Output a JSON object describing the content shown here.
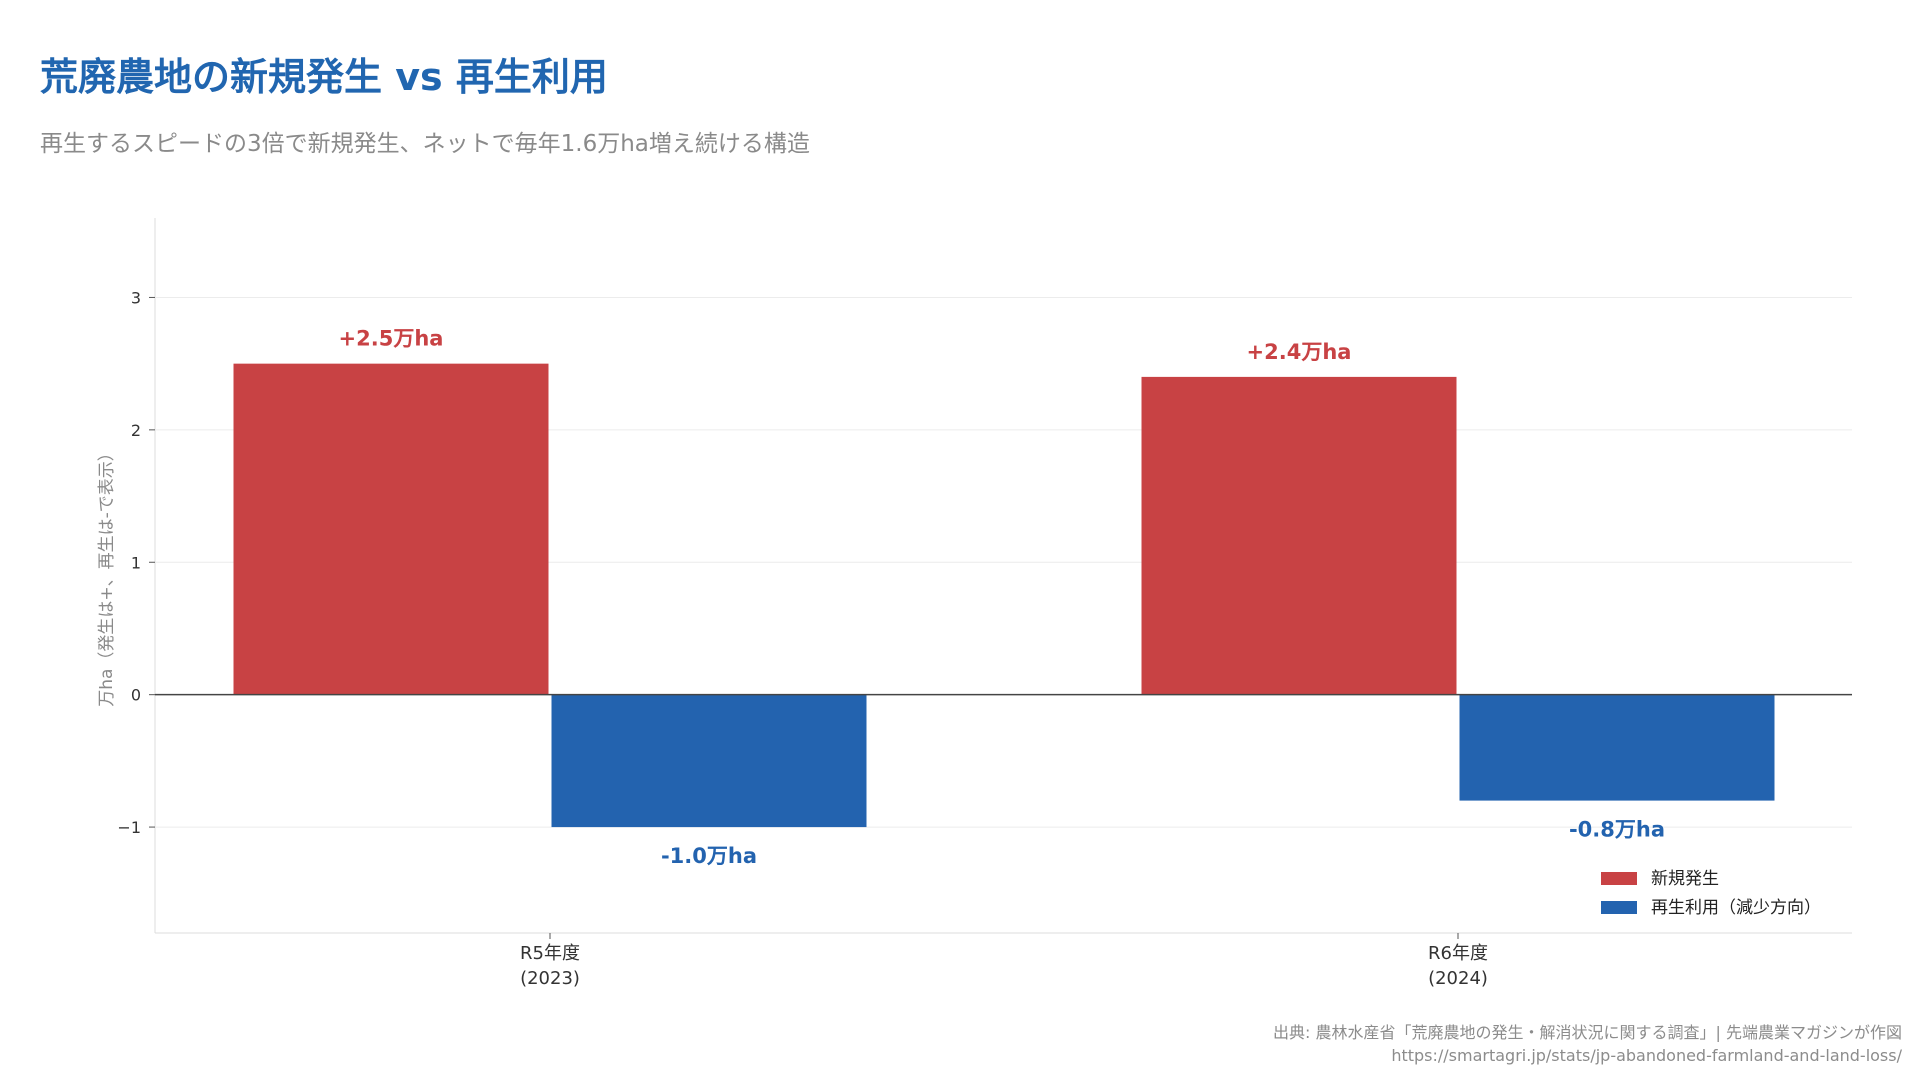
{
  "header": {
    "title": "荒廃農地の新規発生 vs 再生利用",
    "subtitle": "再生するスピードの3倍で新規発生、ネットで毎年1.6万ha増え続ける構造"
  },
  "chart_data": {
    "type": "bar",
    "categories": [
      "R5年度",
      "R6年度"
    ],
    "category_sublabels": [
      "(2023)",
      "(2024)"
    ],
    "series": [
      {
        "name": "新規発生",
        "values": [
          2.5,
          2.4
        ],
        "color": "#c84244",
        "data_labels": [
          "+2.5万ha",
          "+2.4万ha"
        ]
      },
      {
        "name": "再生利用（減少方向）",
        "values": [
          -1.0,
          -0.8
        ],
        "color": "#2363af",
        "data_labels": [
          "-1.0万ha",
          "-0.8万ha"
        ]
      }
    ],
    "ylabel": "万ha（発生は+、再生は-で表示）",
    "ylim": [
      -1.8,
      3.6
    ],
    "yticks": [
      3,
      2,
      1,
      0,
      -1
    ],
    "ytick_labels": [
      "3",
      "2",
      "1",
      "0",
      "−1"
    ],
    "grid": true,
    "legend_position": "bottom-right"
  },
  "footer": {
    "source": "出典: 農林水産省「荒廃農地の発生・解消状況に関する調査」| 先端農業マガジンが作図",
    "url": "https://smartagri.jp/stats/jp-abandoned-farmland-and-land-loss/"
  }
}
